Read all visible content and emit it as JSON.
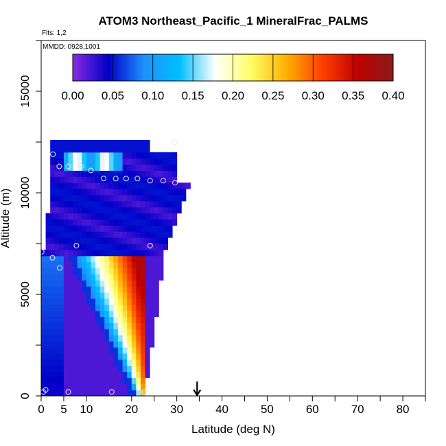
{
  "chart_data": {
    "type": "heatmap",
    "title": "ATOM3 Northeast_Pacific_1 MineralFrac_PALMS",
    "flights_label": "Flts: 1,2",
    "mmdd_label": "MMDD: 0928,1001",
    "xlabel": "Latitude (deg N)",
    "ylabel": "Altitude (m)",
    "xlim": [
      0,
      85
    ],
    "ylim": [
      0,
      17500
    ],
    "x_ticks": [
      0,
      5,
      10,
      20,
      30,
      40,
      50,
      60,
      70,
      80
    ],
    "y_ticks": [
      0,
      5000,
      10000,
      15000
    ],
    "colorbar": {
      "min": 0.0,
      "max": 0.4,
      "tick_labels": [
        "0.00",
        "0.05",
        "0.10",
        "0.15",
        "0.20",
        "0.25",
        "0.30",
        "0.35",
        "0.40"
      ],
      "colors": [
        "#8a2be2",
        "#0000c8",
        "#1e90ff",
        "#00bfff",
        "#ffffff",
        "#ffff66",
        "#ffb000",
        "#ff4000",
        "#c00000",
        "#8b1a1a"
      ]
    },
    "marker_latitude": 34.5,
    "sample_points": [
      {
        "lat": 0.1,
        "alt": 7100
      },
      {
        "lat": 0.5,
        "alt": 200
      },
      {
        "lat": 1.0,
        "alt": 300
      },
      {
        "lat": 2.5,
        "alt": 6800
      },
      {
        "lat": 2.6,
        "alt": 11900
      },
      {
        "lat": 4.1,
        "alt": 6300
      },
      {
        "lat": 4.0,
        "alt": 11300
      },
      {
        "lat": 6.0,
        "alt": 11300
      },
      {
        "lat": 6.0,
        "alt": 200
      },
      {
        "lat": 7.8,
        "alt": 7400
      },
      {
        "lat": 8.8,
        "alt": 11300
      },
      {
        "lat": 11.0,
        "alt": 11100
      },
      {
        "lat": 13.8,
        "alt": 10700
      },
      {
        "lat": 14.6,
        "alt": 6600
      },
      {
        "lat": 15.6,
        "alt": 200
      },
      {
        "lat": 16.5,
        "alt": 10700
      },
      {
        "lat": 18.8,
        "alt": 10700
      },
      {
        "lat": 21.3,
        "alt": 10700
      },
      {
        "lat": 22.8,
        "alt": 200
      },
      {
        "lat": 24.1,
        "alt": 7400
      },
      {
        "lat": 24.1,
        "alt": 10600
      },
      {
        "lat": 27.0,
        "alt": 10600
      },
      {
        "lat": 29.6,
        "alt": 10500
      },
      {
        "lat": 29.6,
        "alt": 12500
      }
    ]
  }
}
